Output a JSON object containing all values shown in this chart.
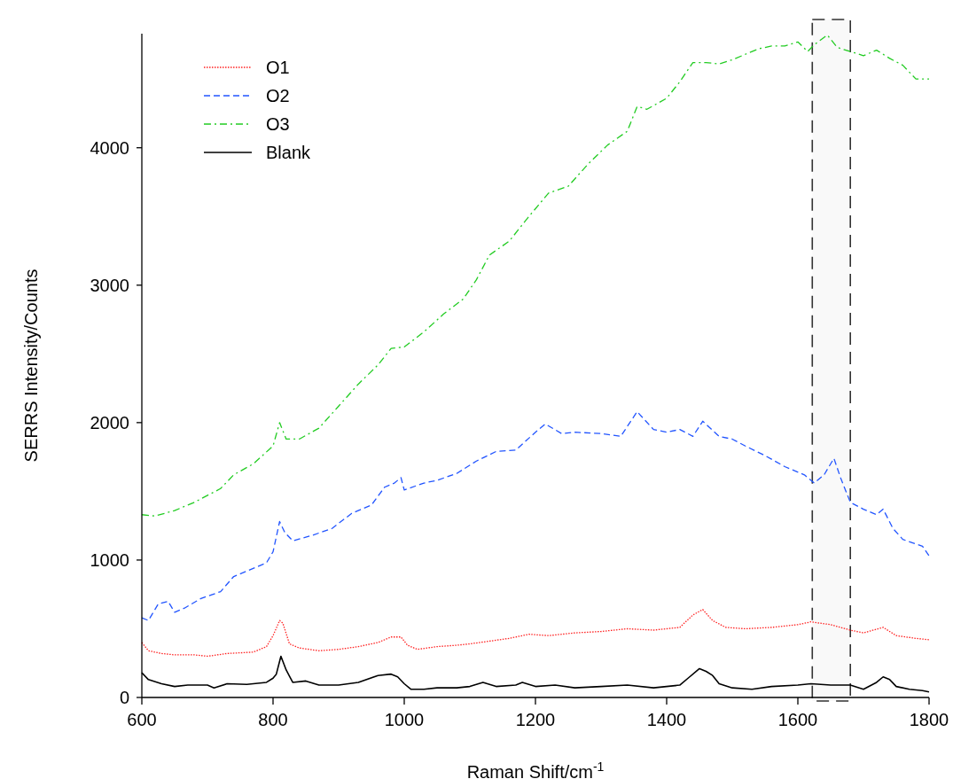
{
  "chart_data": {
    "type": "line",
    "xlabel": "Raman Shift/cm$^{-1}$",
    "ylabel": "SERRS Intensity/Counts",
    "xlim": [
      600,
      1800
    ],
    "ylim": [
      0,
      4830
    ],
    "xticks": [
      600,
      800,
      1000,
      1200,
      1400,
      1600,
      1800
    ],
    "yticks": [
      0,
      1000,
      2000,
      3000,
      4000
    ],
    "grid": false,
    "legend": "top left",
    "marker": "none",
    "bands": [
      {
        "axis": "x",
        "from": 1622,
        "to": 1680,
        "color": "#333333"
      }
    ],
    "series": [
      {
        "name": "O1",
        "color": "#ff2020",
        "line_style": "dotted",
        "x": [
          600,
          610,
          630,
          650,
          680,
          700,
          730,
          770,
          790,
          800,
          810,
          815,
          825,
          840,
          870,
          900,
          930,
          960,
          980,
          995,
          1005,
          1020,
          1050,
          1080,
          1100,
          1130,
          1160,
          1190,
          1220,
          1260,
          1300,
          1340,
          1380,
          1420,
          1440,
          1455,
          1470,
          1490,
          1520,
          1560,
          1600,
          1620,
          1650,
          1680,
          1700,
          1730,
          1750,
          1780,
          1800
        ],
        "values": [
          400,
          340,
          320,
          310,
          310,
          300,
          320,
          330,
          370,
          450,
          560,
          540,
          390,
          360,
          340,
          350,
          370,
          400,
          440,
          440,
          380,
          350,
          370,
          380,
          390,
          410,
          430,
          460,
          450,
          470,
          480,
          500,
          490,
          510,
          600,
          640,
          560,
          510,
          500,
          510,
          530,
          550,
          530,
          490,
          470,
          510,
          450,
          430,
          420
        ]
      },
      {
        "name": "O2",
        "color": "#2255ff",
        "line_style": "dashed",
        "x": [
          600,
          610,
          625,
          640,
          650,
          665,
          690,
          720,
          740,
          760,
          790,
          800,
          810,
          818,
          830,
          860,
          890,
          920,
          950,
          970,
          985,
          995,
          1000,
          1030,
          1050,
          1080,
          1110,
          1140,
          1170,
          1200,
          1215,
          1240,
          1260,
          1300,
          1330,
          1355,
          1380,
          1400,
          1420,
          1440,
          1455,
          1480,
          1500,
          1520,
          1550,
          1580,
          1610,
          1625,
          1640,
          1655,
          1665,
          1680,
          1700,
          1720,
          1730,
          1745,
          1760,
          1790,
          1800
        ],
        "values": [
          580,
          560,
          680,
          700,
          620,
          650,
          720,
          770,
          880,
          920,
          980,
          1060,
          1280,
          1200,
          1140,
          1180,
          1230,
          1340,
          1400,
          1530,
          1560,
          1600,
          1510,
          1560,
          1580,
          1630,
          1720,
          1790,
          1800,
          1930,
          1990,
          1920,
          1930,
          1920,
          1900,
          2080,
          1950,
          1930,
          1950,
          1900,
          2010,
          1900,
          1880,
          1830,
          1760,
          1680,
          1620,
          1560,
          1620,
          1740,
          1600,
          1420,
          1370,
          1330,
          1370,
          1230,
          1150,
          1100,
          1030
        ]
      },
      {
        "name": "O3",
        "color": "#22cc22",
        "line_style": "dashdot",
        "x": [
          600,
          620,
          650,
          680,
          720,
          740,
          770,
          800,
          810,
          820,
          840,
          870,
          900,
          930,
          960,
          980,
          1000,
          1030,
          1060,
          1090,
          1110,
          1130,
          1160,
          1190,
          1220,
          1250,
          1280,
          1310,
          1340,
          1355,
          1370,
          1400,
          1420,
          1440,
          1460,
          1480,
          1500,
          1520,
          1540,
          1560,
          1580,
          1600,
          1615,
          1625,
          1645,
          1660,
          1680,
          1700,
          1720,
          1740,
          1760,
          1780,
          1800
        ],
        "values": [
          1330,
          1320,
          1360,
          1420,
          1520,
          1620,
          1700,
          1830,
          2000,
          1880,
          1880,
          1960,
          2120,
          2280,
          2420,
          2540,
          2550,
          2660,
          2790,
          2900,
          3040,
          3220,
          3320,
          3500,
          3670,
          3720,
          3880,
          4020,
          4120,
          4300,
          4280,
          4360,
          4480,
          4620,
          4620,
          4610,
          4640,
          4680,
          4720,
          4740,
          4740,
          4770,
          4700,
          4750,
          4820,
          4730,
          4700,
          4670,
          4710,
          4650,
          4600,
          4500,
          4500
        ]
      },
      {
        "name": "Blank",
        "color": "#000000",
        "line_style": "solid",
        "x": [
          600,
          610,
          630,
          650,
          670,
          700,
          710,
          730,
          760,
          790,
          800,
          805,
          812,
          820,
          830,
          850,
          870,
          900,
          930,
          960,
          980,
          990,
          1000,
          1010,
          1030,
          1050,
          1080,
          1100,
          1120,
          1140,
          1170,
          1180,
          1200,
          1230,
          1260,
          1300,
          1340,
          1380,
          1420,
          1435,
          1450,
          1460,
          1470,
          1480,
          1500,
          1530,
          1560,
          1600,
          1620,
          1650,
          1680,
          1700,
          1720,
          1730,
          1740,
          1750,
          1770,
          1790,
          1800
        ],
        "values": [
          180,
          130,
          100,
          80,
          90,
          90,
          70,
          100,
          95,
          110,
          140,
          170,
          300,
          200,
          110,
          120,
          90,
          90,
          110,
          160,
          170,
          150,
          100,
          60,
          60,
          70,
          70,
          80,
          110,
          80,
          90,
          110,
          80,
          90,
          70,
          80,
          90,
          70,
          90,
          150,
          210,
          190,
          160,
          100,
          70,
          60,
          80,
          90,
          100,
          90,
          90,
          60,
          110,
          150,
          130,
          80,
          60,
          50,
          40
        ]
      }
    ]
  }
}
